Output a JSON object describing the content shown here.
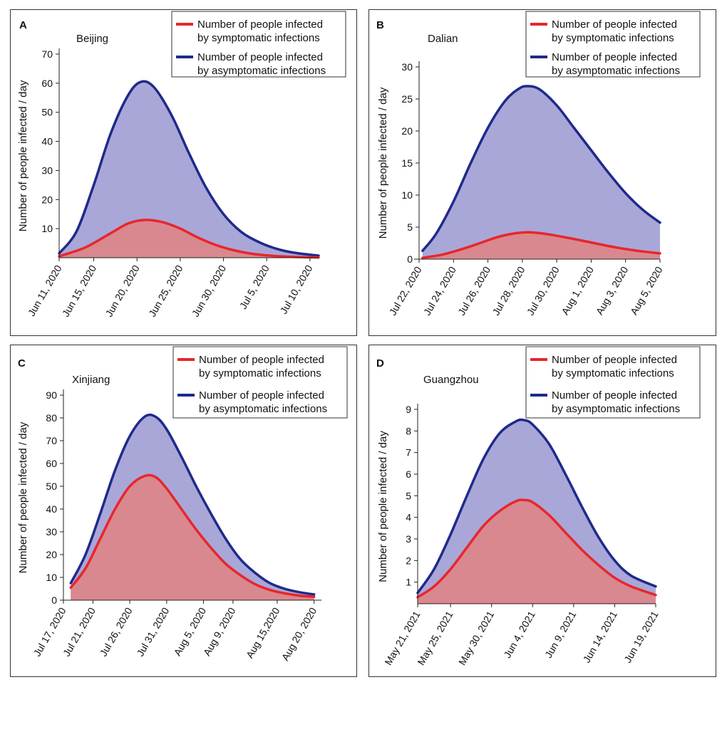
{
  "colors": {
    "symptomatic_line": "#e8262c",
    "asymptomatic_line": "#1f2a8a",
    "symptomatic_fill": "#d9888f",
    "asymptomatic_fill": "#a9a7d8"
  },
  "chart_data": [
    {
      "type": "area",
      "panel_label": "A",
      "title": "Beijing",
      "ylabel": "Number of people infected / day",
      "xlabel": "",
      "ylim": [
        0,
        70
      ],
      "yticks": [
        10,
        20,
        30,
        40,
        50,
        60,
        70
      ],
      "xlim": [
        0,
        30
      ],
      "x_tick_labels": [
        "Jun 11, 2020",
        "Jun 15, 2020",
        "Jun 20, 2020",
        "Jun 25, 2020",
        "Jun 30, 2020",
        "Jul 5, 2020",
        "Jul 10, 2020"
      ],
      "x_tick_positions": [
        0,
        4,
        9,
        14,
        19,
        24,
        29
      ],
      "legend": [
        "Number of people infected by symptomatic infections",
        "Number of people infected by asymptomatic infections"
      ],
      "series": [
        {
          "name": "Number of people infected by symptomatic infections",
          "x": [
            0,
            3,
            6,
            8,
            10,
            12,
            14,
            16,
            18,
            20,
            22,
            24,
            27,
            30
          ],
          "values": [
            0.5,
            3.5,
            8.5,
            11.8,
            13.0,
            12.2,
            10.0,
            7.0,
            4.5,
            2.7,
            1.5,
            0.8,
            0.3,
            0.1
          ]
        },
        {
          "name": "Number of people infected by asymptomatic infections",
          "x": [
            0,
            2,
            4,
            6,
            8,
            9.5,
            11,
            13,
            15,
            17,
            19,
            21,
            23,
            25,
            27,
            30
          ],
          "values": [
            1.5,
            9,
            25,
            43,
            56,
            60.5,
            58.5,
            49,
            36,
            24,
            15,
            9,
            5.5,
            3.2,
            1.8,
            0.7
          ]
        }
      ]
    },
    {
      "type": "area",
      "panel_label": "B",
      "title": "Dalian",
      "ylabel": "Number of people infected / day",
      "xlabel": "",
      "ylim": [
        0,
        30
      ],
      "yticks": [
        0,
        5,
        10,
        15,
        20,
        25,
        30
      ],
      "xlim": [
        0,
        14
      ],
      "x_tick_labels": [
        "Jul 22, 2020",
        "Jul 24, 2020",
        "Jul 26, 2020",
        "Jul 28, 2020",
        "Jul 30, 2020",
        "Aug 1, 2020",
        "Aug 3, 2020",
        "Aug 5, 2020"
      ],
      "x_tick_positions": [
        0,
        2,
        4,
        6,
        8,
        10,
        12,
        14
      ],
      "legend": [
        "Number of people infected by symptomatic infections",
        "Number of people infected by asymptomatic infections"
      ],
      "series": [
        {
          "name": "Number of people infected by symptomatic infections",
          "x": [
            0.2,
            1.5,
            3,
            4.5,
            5.5,
            6.3,
            7.2,
            8.5,
            10,
            11.5,
            13,
            14
          ],
          "values": [
            0.2,
            0.8,
            2.0,
            3.4,
            4.0,
            4.2,
            4.0,
            3.4,
            2.6,
            1.8,
            1.2,
            0.9
          ]
        },
        {
          "name": "Number of people infected by asymptomatic infections",
          "x": [
            0.2,
            1,
            2,
            3,
            4,
            5,
            5.8,
            6.3,
            7,
            8,
            9,
            10,
            11,
            12,
            13,
            14
          ],
          "values": [
            1.3,
            4.0,
            9.0,
            15.0,
            20.5,
            24.7,
            26.6,
            27.0,
            26.5,
            24.0,
            20.5,
            17.0,
            13.5,
            10.3,
            7.7,
            5.7
          ]
        }
      ]
    },
    {
      "type": "area",
      "panel_label": "C",
      "title": "Xinjiang",
      "ylabel": "Number of people infected / day",
      "xlabel": "",
      "ylim": [
        0,
        90
      ],
      "yticks": [
        0,
        10,
        20,
        30,
        40,
        50,
        60,
        70,
        80,
        90
      ],
      "xlim": [
        0,
        35
      ],
      "x_tick_labels": [
        "Jul 17, 2020",
        "Jul 21, 2020",
        "Jul 26, 2020",
        "Jul 31, 2020",
        "Aug 5, 2020",
        "Aug 9, 2020",
        "Aug 15,2020",
        "Aug 20, 2020"
      ],
      "x_tick_positions": [
        0,
        4,
        9,
        14,
        19,
        23,
        29,
        34
      ],
      "legend": [
        "Number of people infected by symptomatic infections",
        "Number of people infected by asymptomatic infections"
      ],
      "series": [
        {
          "name": "Number of people infected by symptomatic infections",
          "x": [
            1,
            3,
            5,
            7,
            9,
            11,
            12.5,
            14,
            16,
            18,
            20,
            22,
            24,
            26,
            28,
            30,
            32,
            34
          ],
          "values": [
            5.5,
            14,
            27,
            40,
            50,
            54.5,
            54,
            49,
            40,
            31,
            23,
            16,
            11,
            7,
            4.5,
            3,
            2,
            1.5
          ]
        },
        {
          "name": "Number of people infected by asymptomatic infections",
          "x": [
            1,
            3,
            5,
            7,
            9,
            11,
            12.5,
            14,
            16,
            18,
            20,
            22,
            24,
            26,
            28,
            30,
            32,
            34
          ],
          "values": [
            7.5,
            20,
            38,
            57,
            72,
            80.5,
            80.5,
            75,
            63,
            50,
            38,
            27,
            18,
            12,
            7.5,
            5,
            3.5,
            2.5
          ]
        }
      ]
    },
    {
      "type": "area",
      "panel_label": "D",
      "title": "Guangzhou",
      "ylabel": "Number of people infected / day",
      "xlabel": "",
      "ylim": [
        0,
        9
      ],
      "yticks": [
        1,
        2,
        3,
        4,
        5,
        6,
        7,
        8,
        9
      ],
      "xlim": [
        0,
        29
      ],
      "x_tick_labels": [
        "May 21, 2021",
        "May 25, 2021",
        "May 30, 2021",
        "Jun 4, 2021",
        "Jun 9, 2021",
        "Jun 14, 2021",
        "Jun 19, 2021"
      ],
      "x_tick_positions": [
        0,
        4,
        9,
        14,
        19,
        24,
        29
      ],
      "legend": [
        "Number of people infected by symptomatic infections",
        "Number of people infected by asymptomatic infections"
      ],
      "series": [
        {
          "name": "Number of people infected by symptomatic infections",
          "x": [
            0,
            2,
            4,
            6,
            8,
            10,
            12,
            13,
            14,
            16,
            18,
            20,
            22,
            24,
            26,
            29
          ],
          "values": [
            0.3,
            0.8,
            1.6,
            2.6,
            3.6,
            4.3,
            4.75,
            4.8,
            4.7,
            4.1,
            3.3,
            2.5,
            1.8,
            1.2,
            0.8,
            0.4
          ]
        },
        {
          "name": "Number of people infected by asymptomatic infections",
          "x": [
            0,
            2,
            4,
            6,
            8,
            10,
            12,
            13,
            14,
            16,
            18,
            20,
            22,
            24,
            26,
            29
          ],
          "values": [
            0.5,
            1.6,
            3.2,
            5.0,
            6.7,
            7.9,
            8.45,
            8.5,
            8.3,
            7.4,
            6.0,
            4.5,
            3.1,
            2.0,
            1.3,
            0.8
          ]
        }
      ]
    }
  ]
}
